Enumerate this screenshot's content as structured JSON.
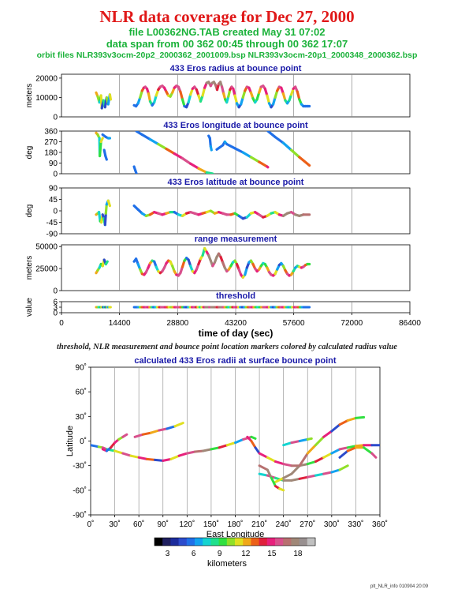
{
  "header": {
    "title": "NLR data coverage for Dec 27, 2000",
    "file_line": "file L00362NG.TAB created May 31 07:02",
    "span_line": "data span from 00 362 00:45 through 00 362 17:07",
    "orbit_line": "orbit files NLR393v3ocm-20p2_2000362_2001009.bsp NLR393v3ocm-20p1_2000348_2000362.bsp"
  },
  "caption": "threshold, NLR measurement and bounce point location markers colored by calculated radius value",
  "footer": "plt_NLR_info 010904 20:09",
  "chart_data": [
    {
      "type": "line",
      "title": "433 Eros radius at bounce point",
      "ylabel": "meters",
      "ylim": [
        0,
        22000
      ],
      "yticks": [
        0,
        10000,
        20000
      ],
      "series": [
        {
          "x": [
            8600,
            9000,
            9400,
            9600,
            9800,
            10000,
            10400,
            10800,
            11200,
            11600,
            12000,
            12200
          ],
          "y": [
            12500,
            10500,
            7500,
            9000,
            11000,
            4500,
            8500,
            5000,
            10000,
            6500,
            11500,
            9000
          ]
        },
        {
          "x": [
            18000,
            18500,
            19000,
            19500,
            20000,
            20400,
            20800,
            21200,
            21600,
            22000,
            22500,
            23000,
            23500,
            24000,
            24500,
            25000,
            25500,
            26000,
            26500,
            27000,
            27500,
            28000,
            28500,
            29000,
            29500,
            30000,
            30500,
            31000,
            31500,
            32000,
            32500,
            33000,
            33500,
            34000,
            34500,
            35000,
            35500,
            36000,
            36500,
            37000,
            37400,
            37800,
            38200,
            38600,
            39000,
            39400,
            39800,
            40200,
            40600,
            41000,
            41400,
            41800,
            42200,
            42600,
            43000,
            43500,
            44000,
            44500,
            45000,
            45500,
            46000,
            46500,
            47000,
            47500,
            48000,
            48500,
            49000,
            49500,
            50000,
            50500,
            51000,
            51500,
            52000,
            52500,
            53000,
            53500,
            54000,
            54500,
            55000,
            55500,
            56000,
            56500,
            57000,
            57500,
            58000,
            58500,
            59000,
            59500,
            60000,
            60500,
            61000,
            61500
          ],
          "y": [
            6000,
            5500,
            7000,
            10000,
            13500,
            15000,
            15500,
            14500,
            12000,
            8000,
            6000,
            7500,
            11000,
            14000,
            15500,
            16000,
            15000,
            13000,
            11000,
            10500,
            12500,
            15000,
            16000,
            15500,
            13000,
            9000,
            5500,
            5000,
            7500,
            11500,
            14500,
            15500,
            14000,
            11000,
            8000,
            11000,
            15000,
            17500,
            18000,
            16000,
            17500,
            18000,
            16500,
            14000,
            17000,
            18000,
            15500,
            12000,
            9000,
            7500,
            10500,
            14000,
            15500,
            14500,
            11000,
            7000,
            5000,
            6500,
            10000,
            13500,
            15500,
            15000,
            12500,
            9500,
            7500,
            9000,
            12500,
            15500,
            16000,
            14500,
            11000,
            7000,
            5000,
            6500,
            10000,
            13500,
            15500,
            15000,
            12000,
            8500,
            7000,
            8500,
            11500,
            14500,
            15500,
            13000,
            9000,
            6500,
            5500,
            5500,
            5500,
            5500
          ]
        }
      ]
    },
    {
      "type": "line",
      "title": "433 Eros longitude at bounce point",
      "ylabel": "deg",
      "ylim": [
        0,
        360
      ],
      "yticks": [
        0,
        90,
        180,
        270,
        360
      ],
      "series": [
        {
          "x": [
            8600,
            9000,
            9400,
            9500,
            9800,
            10200
          ],
          "y": [
            345,
            330,
            300,
            150,
            270,
            300
          ]
        },
        {
          "x": [
            10200,
            11000,
            11600,
            12000
          ],
          "y": [
            330,
            310,
            300,
            300
          ]
        },
        {
          "x": [
            10600,
            10900,
            11200
          ],
          "y": [
            200,
            150,
            120
          ]
        },
        {
          "x": [
            18000,
            18300,
            18600
          ],
          "y": [
            60,
            30,
            0
          ]
        },
        {
          "x": [
            18600,
            20000,
            22000,
            24000,
            26000,
            28000,
            30000,
            32000,
            34000,
            36000,
            37500
          ],
          "y": [
            358,
            330,
            290,
            250,
            210,
            170,
            130,
            85,
            45,
            10,
            0
          ]
        },
        {
          "x": [
            36500,
            36800,
            37000,
            37200
          ],
          "y": [
            320,
            300,
            230,
            200
          ]
        },
        {
          "x": [
            38500,
            40000,
            40500,
            41000
          ],
          "y": [
            205,
            240,
            270,
            250
          ]
        },
        {
          "x": [
            41000,
            43000,
            45000,
            47000,
            49000,
            51000,
            51200
          ],
          "y": [
            250,
            215,
            180,
            140,
            100,
            60,
            55
          ]
        },
        {
          "x": [
            51200,
            53000,
            55000,
            57000,
            59000,
            61500
          ],
          "y": [
            360,
            310,
            260,
            200,
            140,
            70
          ]
        }
      ]
    },
    {
      "type": "line",
      "title": "433 Eros latitude at bounce point",
      "ylabel": "deg",
      "ylim": [
        -90,
        90
      ],
      "yticks": [
        -90,
        -45,
        0,
        45,
        90
      ],
      "series": [
        {
          "x": [
            8600,
            9000,
            9300,
            9600,
            9900,
            10200,
            10500,
            10800,
            11000,
            11200,
            11600,
            12000
          ],
          "y": [
            -15,
            -10,
            -5,
            -40,
            -45,
            -15,
            -30,
            -55,
            -10,
            25,
            40,
            20
          ]
        },
        {
          "x": [
            18000,
            19000,
            20000,
            21000,
            22000,
            23000,
            24000,
            25000,
            26000,
            27000,
            28000,
            29000,
            30000,
            31000,
            32000,
            33000,
            34000,
            35000,
            36000,
            37000,
            38000,
            39000,
            40000,
            41000,
            42000,
            43000,
            44000,
            45000,
            46000,
            47000,
            48000,
            49000,
            50000,
            51000,
            52000,
            53000,
            54000,
            55000,
            56000,
            57000,
            58000,
            59000,
            60000,
            61500
          ],
          "y": [
            20,
            5,
            -10,
            -20,
            -15,
            -5,
            -10,
            -15,
            -10,
            -5,
            -5,
            -15,
            -20,
            -10,
            -5,
            -10,
            -15,
            -10,
            -5,
            0,
            -10,
            -5,
            -10,
            -15,
            -15,
            -10,
            -20,
            -30,
            -25,
            -10,
            -5,
            -15,
            -25,
            -20,
            -10,
            -5,
            -15,
            -20,
            -10,
            -5,
            -15,
            -20,
            -15,
            -15
          ]
        }
      ]
    },
    {
      "type": "line",
      "title": "range measurement",
      "ylabel": "meters",
      "ylim": [
        0,
        52000
      ],
      "yticks": [
        0,
        25000,
        50000
      ],
      "series": [
        {
          "x": [
            8600,
            9000,
            9400,
            9800,
            10200,
            10600,
            11000,
            11400
          ],
          "y": [
            20000,
            23000,
            26000,
            30000,
            28000,
            35000,
            30000,
            33000
          ]
        },
        {
          "x": [
            18000,
            18500,
            19000,
            19500,
            20000,
            20500,
            21000,
            21500,
            22000,
            22500,
            23000,
            23500,
            24000,
            24500,
            25000,
            25500,
            26000,
            26500,
            27000,
            27500,
            28000,
            28500,
            29000,
            29500,
            30000,
            30500,
            31000,
            31500,
            32000,
            32500,
            33000,
            33500,
            34000,
            34500,
            35000,
            35500,
            36000,
            36500,
            37000,
            37500,
            38000,
            38500,
            39000,
            39500,
            40000,
            40500,
            41000,
            41500,
            42000,
            42500,
            43000,
            43500,
            44000,
            44500,
            45000,
            45500,
            46000,
            46500,
            47000,
            47500,
            48000,
            48500,
            49000,
            49500,
            50000,
            50500,
            51000,
            51500,
            52000,
            52500,
            53000,
            53500,
            54000,
            54500,
            55000,
            55500,
            56000,
            56500,
            57000,
            57500,
            58000,
            58500,
            59000,
            59500,
            60000,
            60500,
            61000,
            61500
          ],
          "y": [
            33000,
            36000,
            30000,
            24000,
            19000,
            18000,
            21000,
            26000,
            31000,
            34000,
            33000,
            27000,
            22000,
            20000,
            22000,
            26000,
            31000,
            34000,
            33000,
            28000,
            22000,
            18000,
            17000,
            20000,
            27000,
            34000,
            37000,
            35000,
            28000,
            22000,
            20000,
            24000,
            30000,
            36000,
            40000,
            48000,
            44000,
            40000,
            34000,
            28000,
            32000,
            38000,
            42000,
            38000,
            32000,
            26000,
            22000,
            24000,
            28000,
            32000,
            34000,
            30000,
            24000,
            18000,
            15000,
            18000,
            26000,
            32000,
            34000,
            30000,
            25000,
            22000,
            24000,
            28000,
            31000,
            30000,
            26000,
            21000,
            18000,
            17000,
            19000,
            24000,
            29000,
            31000,
            28000,
            23000,
            19000,
            17000,
            18000,
            22000,
            26000,
            28000,
            27000,
            26000,
            27000,
            29000,
            30000,
            30000
          ]
        }
      ]
    },
    {
      "type": "line",
      "title": "threshold",
      "ylabel": "value",
      "ylim": [
        0,
        6
      ],
      "yticks": [
        0,
        3,
        6
      ],
      "series": [
        {
          "x": [
            8600,
            12200
          ],
          "y": [
            3,
            3
          ]
        },
        {
          "x": [
            18000,
            61500
          ],
          "y": [
            3,
            3
          ]
        }
      ]
    },
    {
      "type": "scatter",
      "title": "calculated 433 Eros radii at surface bounce point",
      "xlabel": "East Longitude",
      "ylabel": "Latitude",
      "xlim": [
        0,
        360
      ],
      "ylim": [
        -90,
        90
      ],
      "xticks": [
        "0˚",
        "30˚",
        "60˚",
        "90˚",
        "120˚",
        "150˚",
        "180˚",
        "210˚",
        "240˚",
        "270˚",
        "300˚",
        "330˚",
        "360˚"
      ],
      "yticks": [
        "90˚",
        "60˚",
        "30˚",
        "0˚",
        "-30˚",
        "-60˚",
        "-90˚"
      ],
      "series": [
        {
          "x": [
            0,
            10,
            15,
            20,
            30,
            40,
            50,
            60,
            70,
            80,
            90,
            100,
            110,
            120,
            130,
            140,
            150,
            160,
            170,
            180,
            190,
            200,
            205
          ],
          "y": [
            -5,
            -7,
            -8,
            -10,
            -12,
            -15,
            -18,
            -20,
            -22,
            -23,
            -24,
            -22,
            -18,
            -15,
            -13,
            -12,
            -10,
            -8,
            -5,
            -2,
            2,
            5,
            3
          ]
        },
        {
          "x": [
            15,
            20,
            25,
            30,
            35,
            40,
            45
          ],
          "y": [
            -10,
            -12,
            -8,
            -2,
            2,
            5,
            8
          ]
        },
        {
          "x": [
            55,
            65,
            75,
            85,
            95,
            105,
            115
          ],
          "y": [
            5,
            8,
            10,
            13,
            15,
            18,
            22
          ]
        },
        {
          "x": [
            195,
            200,
            205,
            210,
            220,
            230,
            240,
            250,
            260,
            270,
            280,
            290,
            300,
            310,
            320,
            330,
            340,
            350,
            360
          ],
          "y": [
            5,
            0,
            -8,
            -15,
            -20,
            -25,
            -28,
            -30,
            -30,
            -28,
            -25,
            -20,
            -15,
            -10,
            -8,
            -6,
            -5,
            -5,
            -5
          ]
        },
        {
          "x": [
            210,
            220,
            230,
            240,
            250,
            260,
            270,
            280,
            290,
            300,
            310,
            320
          ],
          "y": [
            -40,
            -42,
            -45,
            -48,
            -48,
            -46,
            -44,
            -42,
            -40,
            -38,
            -35,
            -30
          ]
        },
        {
          "x": [
            230,
            240,
            250,
            260,
            270,
            280,
            290,
            300,
            310,
            320,
            330,
            340
          ],
          "y": [
            -50,
            -45,
            -40,
            -30,
            -15,
            -5,
            5,
            12,
            20,
            25,
            28,
            29
          ]
        },
        {
          "x": [
            210,
            220,
            225,
            230,
            235,
            240
          ],
          "y": [
            -30,
            -35,
            -45,
            -55,
            -58,
            -60
          ]
        },
        {
          "x": [
            240,
            250,
            260,
            270,
            275
          ],
          "y": [
            -5,
            -2,
            0,
            2,
            3
          ]
        },
        {
          "x": [
            310,
            320,
            330,
            340,
            350,
            355
          ],
          "y": [
            -20,
            -12,
            -8,
            -8,
            -15,
            -20
          ]
        }
      ],
      "colorbar": {
        "ticks": [
          "3",
          "6",
          "9",
          "12",
          "15",
          "18"
        ],
        "label": "kilometers"
      }
    }
  ]
}
